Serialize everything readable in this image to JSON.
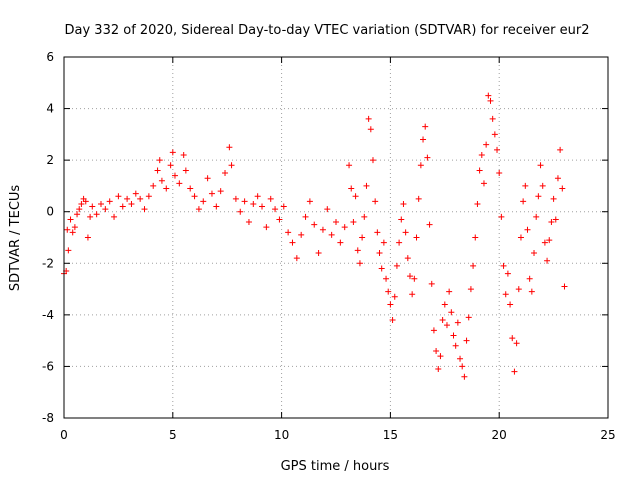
{
  "chart_data": {
    "type": "scatter",
    "title": "Day 332 of 2020, Sidereal Day-to-day VTEC variation (SDTVAR) for receiver eur2",
    "xlabel": "GPS time / hours",
    "ylabel": "SDTVAR / TECUs",
    "xlim": [
      0,
      25
    ],
    "ylim": [
      -8,
      6
    ],
    "xticks": [
      0,
      5,
      10,
      15,
      20,
      25
    ],
    "yticks": [
      -8,
      -6,
      -4,
      -2,
      0,
      2,
      4,
      6
    ],
    "grid": true,
    "marker": "+",
    "color": "#ff0000",
    "series": [
      {
        "name": "SDTVAR",
        "points": [
          [
            0.0,
            -2.4
          ],
          [
            0.1,
            -2.3
          ],
          [
            0.15,
            -0.7
          ],
          [
            0.2,
            -1.5
          ],
          [
            0.3,
            -0.3
          ],
          [
            0.4,
            -0.8
          ],
          [
            0.5,
            -0.6
          ],
          [
            0.6,
            -0.1
          ],
          [
            0.7,
            0.1
          ],
          [
            0.8,
            0.3
          ],
          [
            0.9,
            0.5
          ],
          [
            1.0,
            0.4
          ],
          [
            1.1,
            -1.0
          ],
          [
            1.2,
            -0.2
          ],
          [
            1.3,
            0.2
          ],
          [
            1.5,
            -0.1
          ],
          [
            1.7,
            0.3
          ],
          [
            1.9,
            0.1
          ],
          [
            2.1,
            0.4
          ],
          [
            2.3,
            -0.2
          ],
          [
            2.5,
            0.6
          ],
          [
            2.7,
            0.2
          ],
          [
            2.9,
            0.5
          ],
          [
            3.1,
            0.3
          ],
          [
            3.3,
            0.7
          ],
          [
            3.5,
            0.5
          ],
          [
            3.7,
            0.1
          ],
          [
            3.9,
            0.6
          ],
          [
            4.1,
            1.0
          ],
          [
            4.3,
            1.6
          ],
          [
            4.4,
            2.0
          ],
          [
            4.5,
            1.2
          ],
          [
            4.7,
            0.9
          ],
          [
            4.9,
            1.8
          ],
          [
            5.0,
            2.3
          ],
          [
            5.1,
            1.4
          ],
          [
            5.3,
            1.1
          ],
          [
            5.5,
            2.2
          ],
          [
            5.6,
            1.6
          ],
          [
            5.8,
            0.9
          ],
          [
            6.0,
            0.6
          ],
          [
            6.2,
            0.1
          ],
          [
            6.4,
            0.4
          ],
          [
            6.6,
            1.3
          ],
          [
            6.8,
            0.7
          ],
          [
            7.0,
            0.2
          ],
          [
            7.2,
            0.8
          ],
          [
            7.4,
            1.5
          ],
          [
            7.6,
            2.5
          ],
          [
            7.7,
            1.8
          ],
          [
            7.9,
            0.5
          ],
          [
            8.1,
            0.0
          ],
          [
            8.3,
            0.4
          ],
          [
            8.5,
            -0.4
          ],
          [
            8.7,
            0.3
          ],
          [
            8.9,
            0.6
          ],
          [
            9.1,
            0.2
          ],
          [
            9.3,
            -0.6
          ],
          [
            9.5,
            0.5
          ],
          [
            9.7,
            0.1
          ],
          [
            9.9,
            -0.3
          ],
          [
            10.1,
            0.2
          ],
          [
            10.3,
            -0.8
          ],
          [
            10.5,
            -1.2
          ],
          [
            10.7,
            -1.8
          ],
          [
            10.9,
            -0.9
          ],
          [
            11.1,
            -0.2
          ],
          [
            11.3,
            0.4
          ],
          [
            11.5,
            -0.5
          ],
          [
            11.7,
            -1.6
          ],
          [
            11.9,
            -0.7
          ],
          [
            12.1,
            0.1
          ],
          [
            12.3,
            -0.9
          ],
          [
            12.5,
            -0.4
          ],
          [
            12.7,
            -1.2
          ],
          [
            12.9,
            -0.6
          ],
          [
            13.1,
            1.8
          ],
          [
            13.2,
            0.9
          ],
          [
            13.3,
            -0.4
          ],
          [
            13.4,
            0.6
          ],
          [
            13.5,
            -1.5
          ],
          [
            13.6,
            -2.0
          ],
          [
            13.7,
            -1.0
          ],
          [
            13.8,
            -0.2
          ],
          [
            13.9,
            1.0
          ],
          [
            14.0,
            3.6
          ],
          [
            14.1,
            3.2
          ],
          [
            14.2,
            2.0
          ],
          [
            14.3,
            0.4
          ],
          [
            14.4,
            -0.8
          ],
          [
            14.5,
            -1.6
          ],
          [
            14.6,
            -2.2
          ],
          [
            14.7,
            -1.2
          ],
          [
            14.8,
            -2.6
          ],
          [
            14.9,
            -3.1
          ],
          [
            15.0,
            -3.6
          ],
          [
            15.1,
            -4.2
          ],
          [
            15.2,
            -3.3
          ],
          [
            15.3,
            -2.1
          ],
          [
            15.4,
            -1.2
          ],
          [
            15.5,
            -0.3
          ],
          [
            15.6,
            0.3
          ],
          [
            15.7,
            -0.8
          ],
          [
            15.8,
            -1.8
          ],
          [
            15.9,
            -2.5
          ],
          [
            16.0,
            -3.2
          ],
          [
            16.1,
            -2.6
          ],
          [
            16.2,
            -1.0
          ],
          [
            16.3,
            0.5
          ],
          [
            16.4,
            1.8
          ],
          [
            16.5,
            2.8
          ],
          [
            16.6,
            3.3
          ],
          [
            16.7,
            2.1
          ],
          [
            16.8,
            -0.5
          ],
          [
            16.9,
            -2.8
          ],
          [
            17.0,
            -4.6
          ],
          [
            17.1,
            -5.4
          ],
          [
            17.2,
            -6.1
          ],
          [
            17.3,
            -5.6
          ],
          [
            17.4,
            -4.2
          ],
          [
            17.5,
            -3.6
          ],
          [
            17.6,
            -4.4
          ],
          [
            17.7,
            -3.1
          ],
          [
            17.8,
            -3.9
          ],
          [
            17.9,
            -4.8
          ],
          [
            18.0,
            -5.2
          ],
          [
            18.1,
            -4.3
          ],
          [
            18.2,
            -5.7
          ],
          [
            18.3,
            -6.0
          ],
          [
            18.4,
            -6.4
          ],
          [
            18.5,
            -5.0
          ],
          [
            18.6,
            -4.1
          ],
          [
            18.7,
            -3.0
          ],
          [
            18.8,
            -2.1
          ],
          [
            18.9,
            -1.0
          ],
          [
            19.0,
            0.3
          ],
          [
            19.1,
            1.6
          ],
          [
            19.2,
            2.2
          ],
          [
            19.3,
            1.1
          ],
          [
            19.4,
            2.6
          ],
          [
            19.5,
            4.5
          ],
          [
            19.6,
            4.3
          ],
          [
            19.7,
            3.6
          ],
          [
            19.8,
            3.0
          ],
          [
            19.9,
            2.4
          ],
          [
            20.0,
            1.5
          ],
          [
            20.1,
            -0.2
          ],
          [
            20.2,
            -2.1
          ],
          [
            20.3,
            -3.2
          ],
          [
            20.4,
            -2.4
          ],
          [
            20.5,
            -3.6
          ],
          [
            20.6,
            -4.9
          ],
          [
            20.7,
            -6.2
          ],
          [
            20.8,
            -5.1
          ],
          [
            20.9,
            -3.0
          ],
          [
            21.0,
            -1.0
          ],
          [
            21.1,
            0.4
          ],
          [
            21.2,
            1.0
          ],
          [
            21.3,
            -0.7
          ],
          [
            21.4,
            -2.6
          ],
          [
            21.5,
            -3.1
          ],
          [
            21.6,
            -1.6
          ],
          [
            21.7,
            -0.2
          ],
          [
            21.8,
            0.6
          ],
          [
            21.9,
            1.8
          ],
          [
            22.0,
            1.0
          ],
          [
            22.1,
            -1.2
          ],
          [
            22.2,
            -1.9
          ],
          [
            22.3,
            -1.1
          ],
          [
            22.4,
            -0.4
          ],
          [
            22.5,
            0.5
          ],
          [
            22.6,
            -0.3
          ],
          [
            22.7,
            1.3
          ],
          [
            22.8,
            2.4
          ],
          [
            22.9,
            0.9
          ],
          [
            23.0,
            -2.9
          ]
        ]
      }
    ]
  }
}
